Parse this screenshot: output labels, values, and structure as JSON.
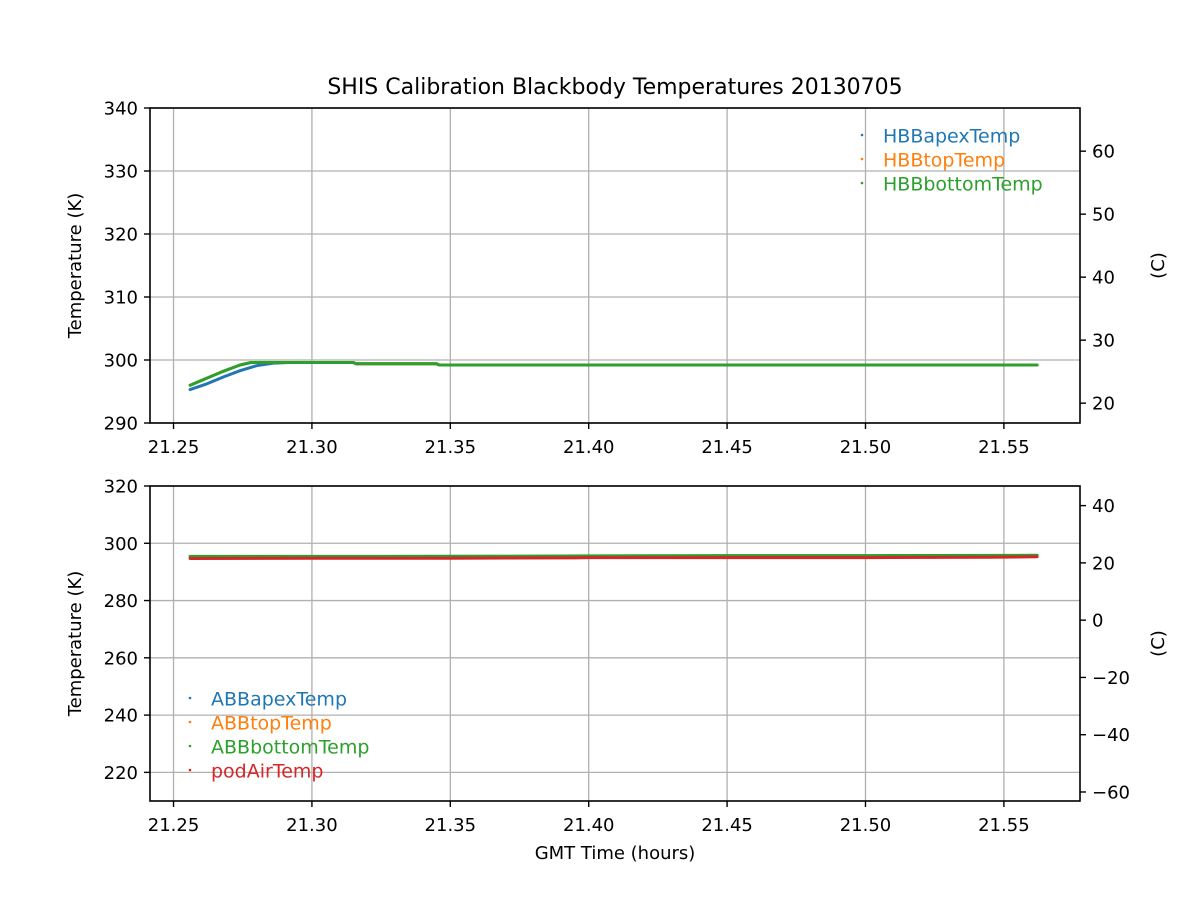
{
  "chart_data": [
    {
      "type": "line",
      "title": "SHIS Calibration Blackbody Temperatures 20130705",
      "xlabel": "",
      "ylabel": "Temperature (K)",
      "ylabel_right": "(C)",
      "xlim": [
        21.2415,
        21.5775
      ],
      "ylim": [
        290,
        340
      ],
      "ylim_right": [
        16.85,
        66.85
      ],
      "xticks": [
        "21.25",
        "21.30",
        "21.35",
        "21.40",
        "21.45",
        "21.50",
        "21.55"
      ],
      "xtick_values": [
        21.25,
        21.3,
        21.35,
        21.4,
        21.45,
        21.5,
        21.55
      ],
      "yticks": [
        "290",
        "300",
        "310",
        "320",
        "330",
        "340"
      ],
      "ytick_values": [
        290,
        300,
        310,
        320,
        330,
        340
      ],
      "yticks_right": [
        "20",
        "30",
        "40",
        "50",
        "60"
      ],
      "ytick_right_values": [
        20,
        30,
        40,
        50,
        60
      ],
      "grid": true,
      "legend": "top-right",
      "series": [
        {
          "name": "HBBapexTemp",
          "color": "#1f77b4",
          "x": [
            21.256,
            21.262,
            21.268,
            21.274,
            21.28,
            21.286,
            21.292,
            21.3,
            21.315,
            21.316,
            21.345,
            21.346,
            21.4,
            21.45,
            21.5,
            21.562
          ],
          "y": [
            295.3,
            296.2,
            297.3,
            298.3,
            299.1,
            299.5,
            299.6,
            299.6,
            299.6,
            299.4,
            299.4,
            299.2,
            299.2,
            299.2,
            299.2,
            299.2
          ]
        },
        {
          "name": "HBBtopTemp",
          "color": "#ff7f0e",
          "x": [
            21.256,
            21.262,
            21.268,
            21.274,
            21.278,
            21.286,
            21.3,
            21.315,
            21.316,
            21.345,
            21.346,
            21.4,
            21.5,
            21.562
          ],
          "y": [
            296.0,
            297.1,
            298.2,
            299.2,
            299.6,
            299.6,
            299.6,
            299.6,
            299.4,
            299.4,
            299.2,
            299.2,
            299.2,
            299.2
          ]
        },
        {
          "name": "HBBbottomTemp",
          "color": "#2ca02c",
          "x": [
            21.256,
            21.262,
            21.268,
            21.274,
            21.278,
            21.286,
            21.3,
            21.315,
            21.316,
            21.345,
            21.346,
            21.4,
            21.5,
            21.562
          ],
          "y": [
            296.0,
            297.1,
            298.2,
            299.2,
            299.6,
            299.6,
            299.6,
            299.6,
            299.4,
            299.4,
            299.2,
            299.2,
            299.2,
            299.2
          ]
        }
      ]
    },
    {
      "type": "line",
      "title": "",
      "xlabel": "GMT Time (hours)",
      "ylabel": "Temperature (K)",
      "ylabel_right": "(C)",
      "xlim": [
        21.2415,
        21.5775
      ],
      "ylim": [
        210,
        320
      ],
      "ylim_right": [
        -63.15,
        46.85
      ],
      "xticks": [
        "21.25",
        "21.30",
        "21.35",
        "21.40",
        "21.45",
        "21.50",
        "21.55"
      ],
      "xtick_values": [
        21.25,
        21.3,
        21.35,
        21.4,
        21.45,
        21.5,
        21.55
      ],
      "yticks": [
        "220",
        "240",
        "260",
        "280",
        "300",
        "320"
      ],
      "ytick_values": [
        220,
        240,
        260,
        280,
        300,
        320
      ],
      "yticks_right": [
        "−60",
        "−40",
        "−20",
        "0",
        "20",
        "40"
      ],
      "ytick_right_values": [
        -60,
        -40,
        -20,
        0,
        20,
        40
      ],
      "grid": true,
      "legend": "lower-left",
      "series": [
        {
          "name": "ABBapexTemp",
          "color": "#1f77b4",
          "x": [
            21.256,
            21.3,
            21.35,
            21.4,
            21.45,
            21.5,
            21.562
          ],
          "y": [
            295.3,
            295.3,
            295.4,
            295.5,
            295.6,
            295.6,
            295.7
          ]
        },
        {
          "name": "ABBtopTemp",
          "color": "#ff7f0e",
          "x": [
            21.256,
            21.3,
            21.35,
            21.4,
            21.45,
            21.5,
            21.562
          ],
          "y": [
            295.2,
            295.2,
            295.3,
            295.4,
            295.5,
            295.5,
            295.6
          ]
        },
        {
          "name": "ABBbottomTemp",
          "color": "#2ca02c",
          "x": [
            21.256,
            21.3,
            21.37,
            21.4,
            21.45,
            21.5,
            21.562
          ],
          "y": [
            295.4,
            295.4,
            295.5,
            295.6,
            295.7,
            295.7,
            295.8
          ]
        },
        {
          "name": "podAirTemp",
          "color": "#d62728",
          "x": [
            21.256,
            21.3,
            21.35,
            21.395,
            21.4,
            21.45,
            21.5,
            21.545,
            21.562
          ],
          "y": [
            294.7,
            294.8,
            294.8,
            294.9,
            295.0,
            295.0,
            295.0,
            295.1,
            295.3
          ]
        }
      ]
    }
  ]
}
